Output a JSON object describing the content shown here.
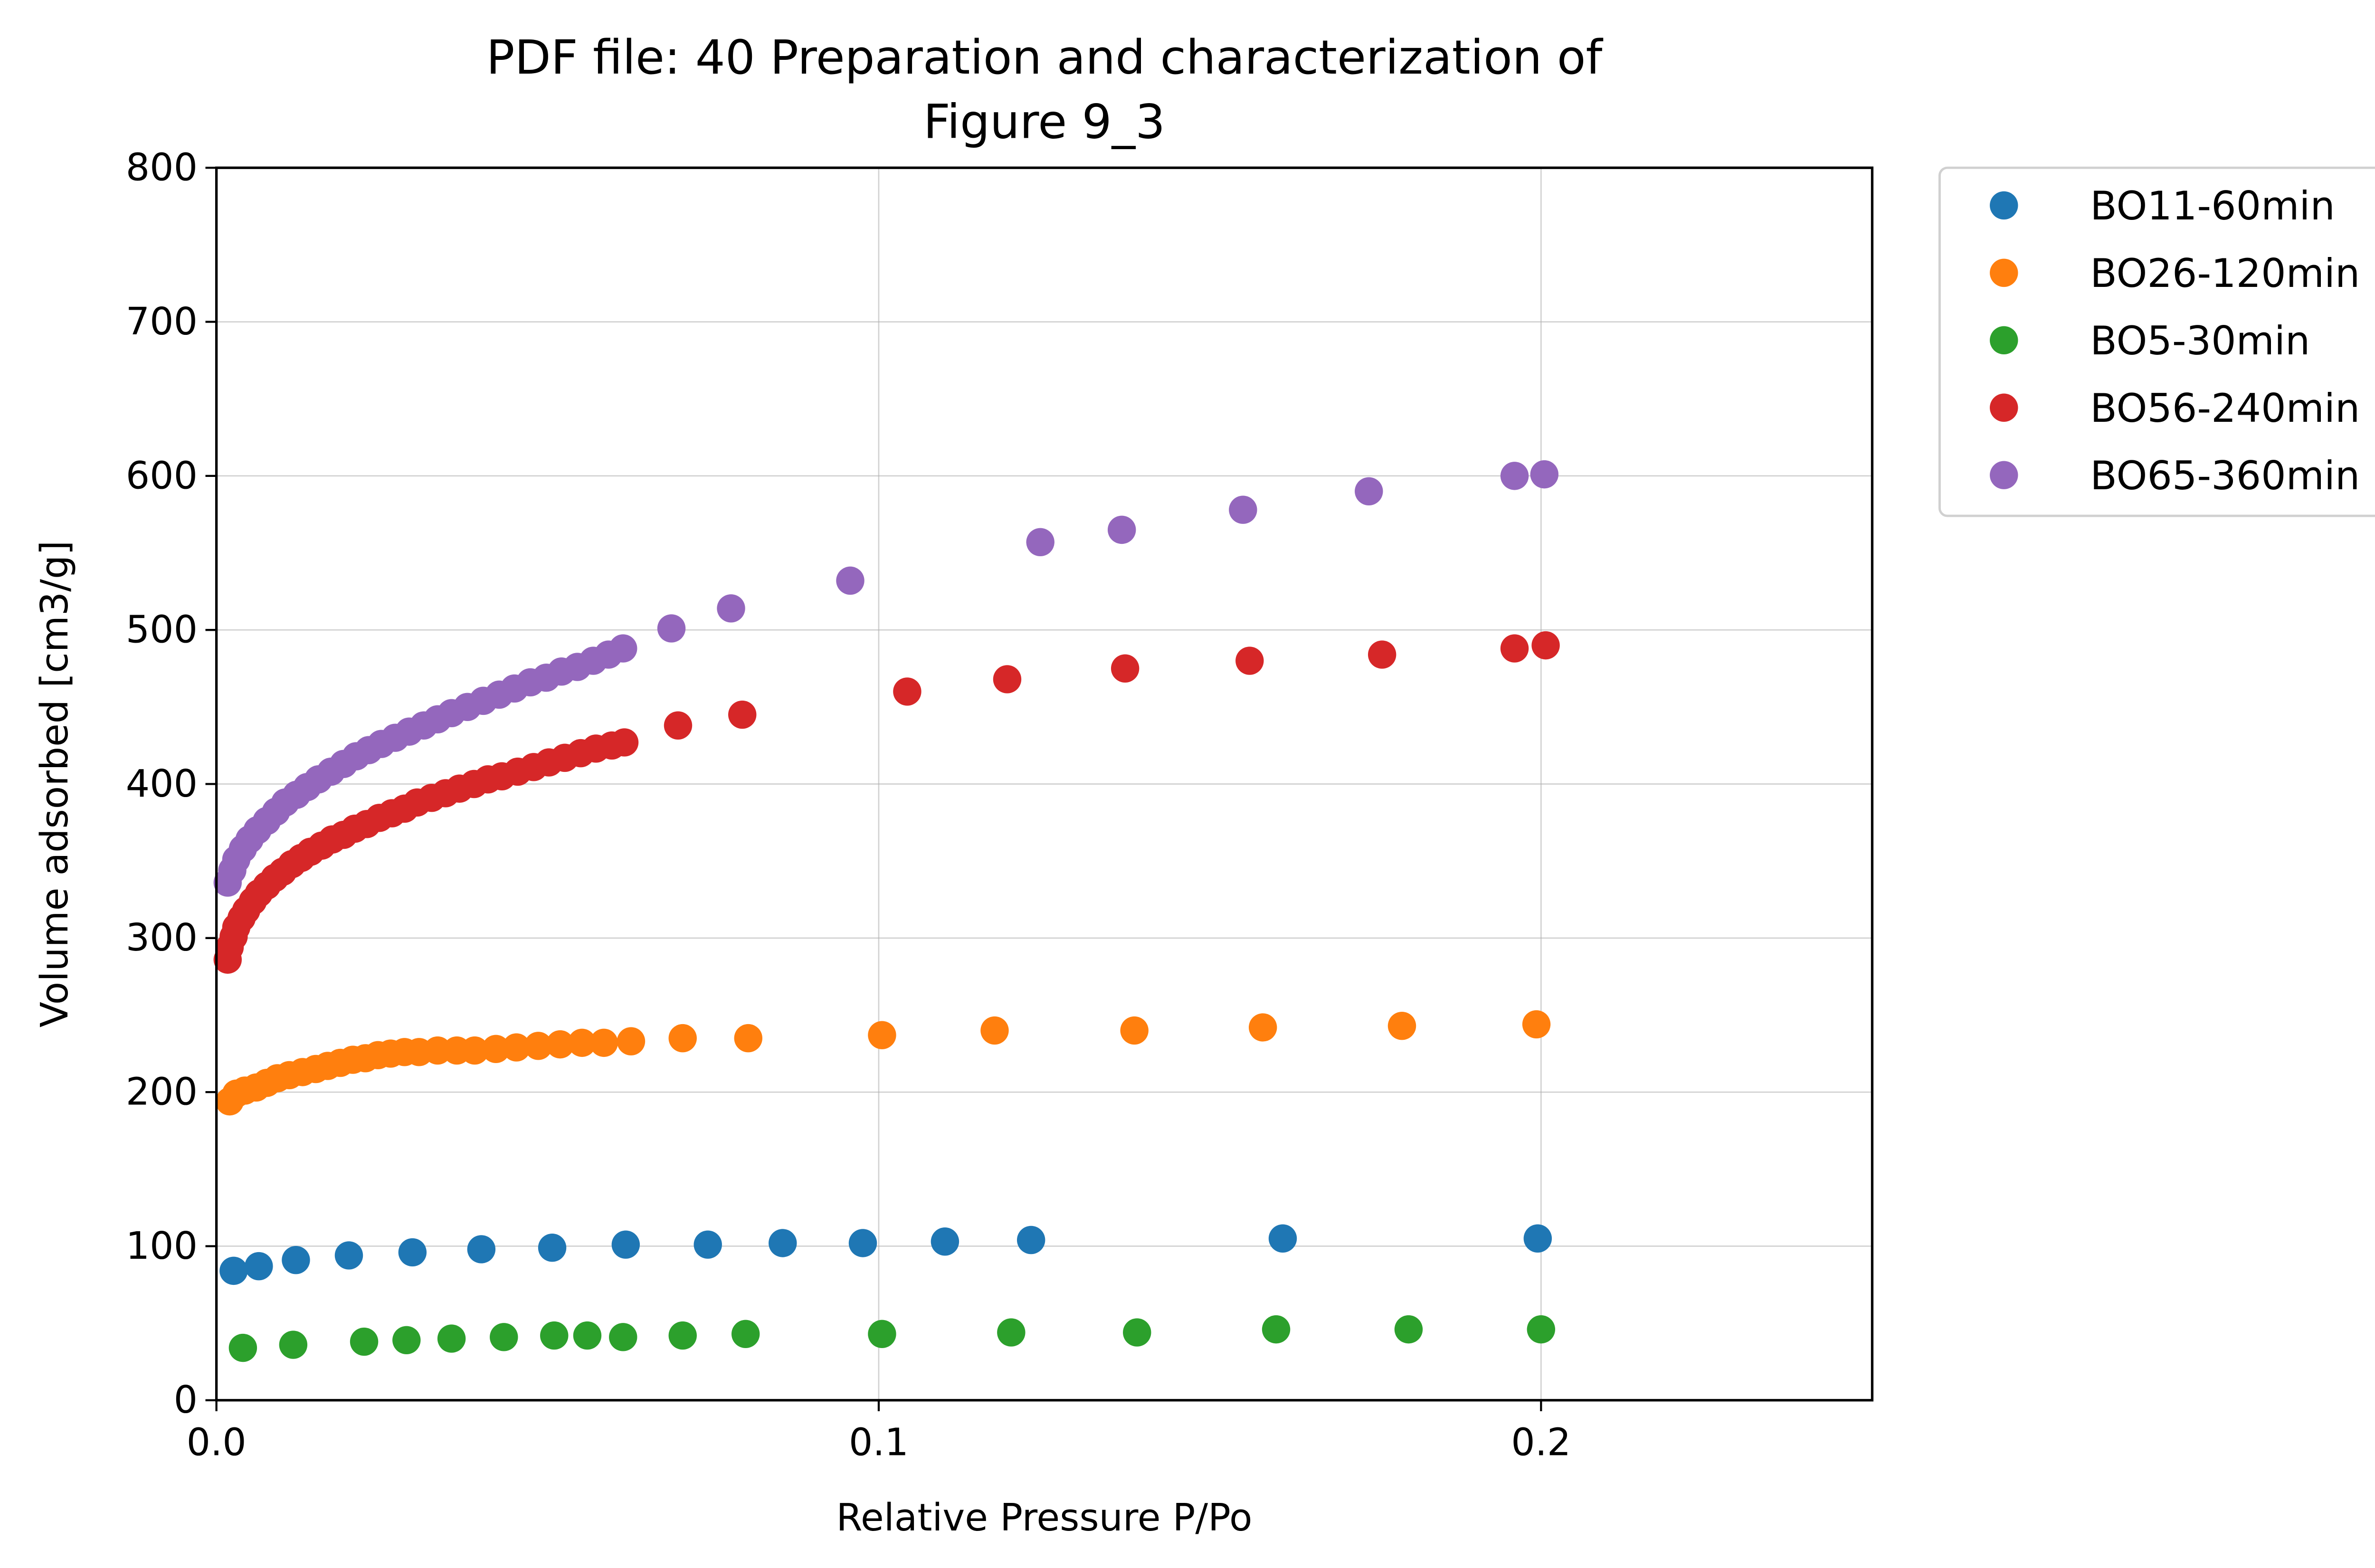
{
  "chart_data": {
    "type": "scatter",
    "title": [
      "PDF file: 40 Preparation and characterization of",
      "Figure 9_3"
    ],
    "x_label": "Relative Pressure P/Po",
    "y_label": "Volume adsorbed [cm3/g]",
    "xlim": [
      0,
      0.25
    ],
    "ylim": [
      0,
      800
    ],
    "xticks": [
      {
        "value": 0,
        "label": "0.0"
      },
      0.1,
      0.2
    ],
    "yticks": [
      0,
      100,
      200,
      300,
      400,
      500,
      600,
      700,
      800
    ],
    "grid": true,
    "legend": "outside-upper-right",
    "series": [
      {
        "name": "BO11-60min",
        "color": "#1f77b4",
        "x": [
          0.0026,
          0.0064,
          0.012,
          0.02,
          0.0296,
          0.04,
          0.0507,
          0.0618,
          0.0742,
          0.0855,
          0.0976,
          0.11,
          0.123,
          0.161,
          0.1995
        ],
        "values": [
          84,
          87,
          91,
          94,
          96,
          98,
          99,
          101,
          101,
          102,
          102,
          103,
          104,
          105,
          105
        ]
      },
      {
        "name": "BO26-120min",
        "color": "#ff7f0e",
        "x": [
          0.002,
          0.003,
          0.0043,
          0.006,
          0.0076,
          0.0092,
          0.011,
          0.013,
          0.015,
          0.0168,
          0.0187,
          0.0206,
          0.0225,
          0.0244,
          0.0263,
          0.0284,
          0.0306,
          0.0334,
          0.0363,
          0.039,
          0.0422,
          0.0453,
          0.0486,
          0.0519,
          0.0552,
          0.0585,
          0.0626,
          0.0704,
          0.0803,
          0.1005,
          0.1175,
          0.1386,
          0.158,
          0.179,
          0.1993
        ],
        "values": [
          194,
          199,
          201,
          203,
          206,
          209,
          211,
          213,
          215,
          217,
          219,
          221,
          222,
          224,
          225,
          226,
          226,
          227,
          227,
          227,
          228,
          229,
          230,
          231,
          232,
          232,
          233,
          235,
          235,
          237,
          240,
          240,
          242,
          243,
          244
        ]
      },
      {
        "name": "BO5-30min",
        "color": "#2ca02c",
        "x": [
          0.004,
          0.0116,
          0.0223,
          0.0287,
          0.0355,
          0.0434,
          0.051,
          0.056,
          0.0614,
          0.0704,
          0.0799,
          0.1005,
          0.12,
          0.139,
          0.16,
          0.18,
          0.2
        ],
        "values": [
          34,
          36,
          38,
          39,
          40,
          41,
          42,
          42,
          41,
          42,
          43,
          43,
          44,
          44,
          46,
          46,
          46
        ]
      },
      {
        "name": "BO56-240min",
        "color": "#d62728",
        "x": [
          0.0017,
          0.002,
          0.0026,
          0.003,
          0.0038,
          0.0045,
          0.0055,
          0.0064,
          0.0076,
          0.0088,
          0.01,
          0.0114,
          0.0128,
          0.0142,
          0.0159,
          0.0175,
          0.0192,
          0.0209,
          0.0227,
          0.0246,
          0.0265,
          0.0284,
          0.0303,
          0.0325,
          0.0346,
          0.0367,
          0.0389,
          0.041,
          0.0431,
          0.0455,
          0.0479,
          0.0502,
          0.0526,
          0.055,
          0.0573,
          0.0597,
          0.0616,
          0.0697,
          0.0794,
          0.1043,
          0.1194,
          0.1372,
          0.156,
          0.176,
          0.196,
          0.2007
        ],
        "values": [
          286,
          294,
          301,
          307,
          313,
          318,
          324,
          329,
          334,
          339,
          343,
          348,
          352,
          356,
          360,
          364,
          367,
          371,
          374,
          378,
          381,
          384,
          388,
          391,
          394,
          397,
          400,
          403,
          405,
          408,
          411,
          414,
          417,
          420,
          423,
          425,
          427,
          438,
          445,
          460,
          468,
          475,
          480,
          484,
          488,
          490
        ]
      },
      {
        "name": "BO65-360min",
        "color": "#9467bd",
        "x": [
          0.0017,
          0.0024,
          0.003,
          0.004,
          0.005,
          0.0062,
          0.0076,
          0.009,
          0.0104,
          0.0121,
          0.0137,
          0.0154,
          0.0173,
          0.0192,
          0.0211,
          0.023,
          0.0249,
          0.027,
          0.0291,
          0.0313,
          0.0334,
          0.0355,
          0.0379,
          0.0403,
          0.0427,
          0.045,
          0.0474,
          0.0498,
          0.0521,
          0.0545,
          0.0569,
          0.0592,
          0.0614,
          0.0687,
          0.0777,
          0.0957,
          0.1244,
          0.1367,
          0.155,
          0.174,
          0.196,
          0.2005
        ],
        "values": [
          336,
          344,
          351,
          358,
          364,
          370,
          376,
          382,
          388,
          393,
          398,
          403,
          408,
          413,
          418,
          422,
          426,
          430,
          434,
          438,
          442,
          446,
          450,
          454,
          458,
          462,
          466,
          469,
          473,
          476,
          480,
          484,
          488,
          501,
          514,
          532,
          557,
          565,
          578,
          590,
          600,
          601
        ]
      }
    ]
  }
}
